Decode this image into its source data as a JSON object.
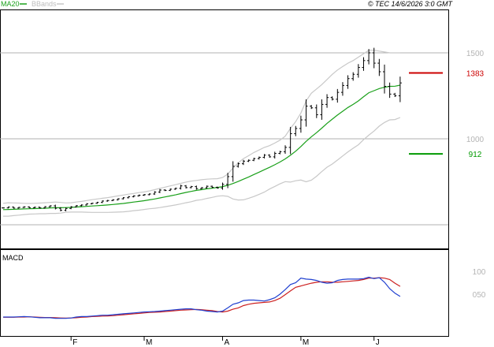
{
  "header": {
    "legend_ma": "MA20",
    "legend_bb": "BBands",
    "copyright": "© TEC 14/6/2026 3:0 GMT"
  },
  "colors": {
    "price_bar": "#000000",
    "ma20": "#1aa01a",
    "bbands": "#c8c8c8",
    "resistance": "#cc0000",
    "support": "#009900",
    "macd_line": "#2040d0",
    "signal_line": "#cc2020",
    "grid": "#b0b0b0",
    "frame": "#000000",
    "axis_label": "#b4b4b4"
  },
  "chart_data": [
    {
      "type": "ohlc",
      "panel": "price",
      "ylim": [
        700,
        1700
      ],
      "y_ticks": [
        {
          "value": 1500,
          "label": "1500"
        },
        {
          "value": 1000,
          "label": "1000"
        }
      ],
      "gridlines": [
        1500,
        1000,
        500
      ],
      "x_tick_labels": [
        "F",
        "M",
        "A",
        "M",
        "J"
      ],
      "x_tick_index": [
        13,
        27,
        42,
        57,
        71
      ],
      "closes": [
        598,
        603,
        597,
        601,
        604,
        599,
        602,
        598,
        605,
        610,
        596,
        584,
        595,
        604,
        611,
        615,
        622,
        625,
        630,
        638,
        641,
        645,
        651,
        657,
        663,
        668,
        672,
        675,
        679,
        690,
        702,
        700,
        707,
        712,
        726,
        716,
        722,
        710,
        715,
        724,
        718,
        714,
        735,
        780,
        840,
        855,
        870,
        875,
        885,
        892,
        905,
        895,
        915,
        925,
        950,
        1030,
        1060,
        1110,
        1190,
        1180,
        1140,
        1200,
        1240,
        1230,
        1270,
        1310,
        1350,
        1375,
        1415,
        1455,
        1500,
        1440,
        1390,
        1305,
        1260,
        1250,
        1325
      ],
      "ma20": [
        588,
        589,
        590,
        591,
        592,
        593,
        594,
        595,
        596,
        598,
        599,
        599,
        600,
        601,
        603,
        605,
        607,
        609,
        611,
        613,
        615,
        618,
        621,
        624,
        628,
        632,
        636,
        640,
        645,
        650,
        656,
        662,
        668,
        674,
        681,
        688,
        694,
        700,
        704,
        709,
        713,
        717,
        722,
        730,
        740,
        752,
        765,
        778,
        792,
        806,
        820,
        834,
        849,
        865,
        883,
        904,
        928,
        955,
        985,
        1012,
        1036,
        1062,
        1090,
        1114,
        1138,
        1160,
        1182,
        1200,
        1220,
        1245,
        1268,
        1280,
        1292,
        1300,
        1305,
        1306,
        1312
      ],
      "bb_upper": [
        625,
        628,
        627,
        626,
        625,
        624,
        625,
        626,
        628,
        630,
        632,
        630,
        627,
        628,
        632,
        636,
        641,
        646,
        650,
        654,
        658,
        663,
        668,
        673,
        678,
        682,
        687,
        691,
        697,
        704,
        712,
        719,
        726,
        733,
        741,
        748,
        754,
        758,
        762,
        765,
        767,
        768,
        775,
        795,
        830,
        860,
        885,
        902,
        920,
        935,
        950,
        960,
        975,
        992,
        1015,
        1060,
        1100,
        1150,
        1220,
        1265,
        1290,
        1315,
        1345,
        1375,
        1400,
        1420,
        1440,
        1455,
        1475,
        1495,
        1515,
        1515,
        1510,
        1505,
        1500,
        1500,
        1500
      ],
      "bb_lower": [
        550,
        550,
        553,
        556,
        559,
        562,
        563,
        564,
        564,
        566,
        566,
        568,
        573,
        574,
        574,
        574,
        573,
        572,
        572,
        572,
        572,
        573,
        574,
        575,
        578,
        582,
        585,
        589,
        593,
        596,
        600,
        605,
        610,
        615,
        621,
        628,
        634,
        642,
        646,
        653,
        659,
        666,
        669,
        665,
        650,
        644,
        645,
        654,
        664,
        677,
        690,
        708,
        723,
        738,
        751,
        748,
        756,
        760,
        750,
        759,
        782,
        809,
        835,
        853,
        876,
        900,
        924,
        945,
        965,
        995,
        1021,
        1045,
        1074,
        1095,
        1110,
        1112,
        1124
      ],
      "levels": [
        {
          "label": "1383",
          "value": 1383,
          "role": "resistance"
        },
        {
          "label": "912",
          "value": 912,
          "role": "support"
        }
      ]
    },
    {
      "type": "line",
      "panel": "macd",
      "title": "MACD",
      "ylim": [
        -5,
        110
      ],
      "y_ticks": [
        {
          "value": 100,
          "label": "100"
        },
        {
          "value": 50,
          "label": "050"
        }
      ],
      "series": [
        {
          "key": "macd",
          "values": [
            0,
            0,
            0,
            0.5,
            1,
            0.5,
            -0.5,
            -1.5,
            -1.5,
            -1.5,
            -3,
            -3,
            -3,
            -2,
            0,
            1,
            1,
            2,
            3,
            4,
            4,
            5,
            6,
            7,
            8,
            9,
            10,
            11,
            11.5,
            12,
            13,
            14,
            15,
            16,
            17,
            18,
            18,
            16,
            15,
            13,
            12,
            11,
            13,
            20,
            28,
            31,
            36,
            37,
            37,
            36,
            35,
            38,
            42,
            50,
            60,
            71,
            75,
            85,
            83,
            82,
            80,
            76,
            74,
            75,
            80,
            82,
            83,
            83,
            83,
            84,
            87,
            84,
            86,
            76,
            62,
            52,
            45
          ]
        },
        {
          "key": "signal",
          "values": [
            -0.5,
            -0.5,
            -0.5,
            0,
            0,
            0.5,
            0,
            -0.5,
            -1,
            -1,
            -1.5,
            -2,
            -2.5,
            -2,
            -1.5,
            -0.5,
            0,
            1,
            1.5,
            2,
            2.5,
            3,
            4,
            5,
            6,
            7,
            8,
            9,
            10,
            10.5,
            11,
            12,
            13,
            14,
            15,
            15.5,
            16,
            16.5,
            16,
            15,
            14,
            12,
            11,
            13,
            17,
            20,
            25,
            28,
            30,
            31,
            32,
            33,
            36,
            41,
            49,
            57,
            65,
            68,
            71,
            74,
            76,
            77,
            77,
            76,
            76,
            77,
            78,
            79,
            80,
            82,
            85,
            85,
            86,
            85,
            82,
            74,
            67
          ]
        }
      ]
    }
  ]
}
